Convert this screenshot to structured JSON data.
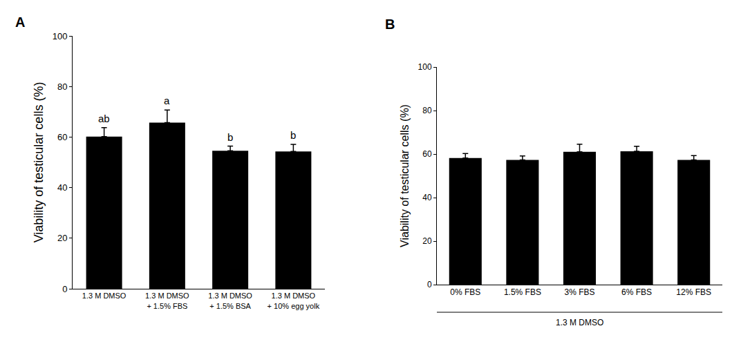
{
  "chart_data": [
    {
      "type": "bar",
      "panel_label": "A",
      "categories": [
        "1.3 M DMSO",
        "1.3 M DMSO + 1.5% FBS",
        "1.3 M DMSO + 1.5% BSA",
        "1.3 M DMSO + 10% egg yolk"
      ],
      "values": [
        60.2,
        65.7,
        54.6,
        54.3
      ],
      "errors": [
        3.5,
        5.0,
        1.8,
        2.8
      ],
      "annotations": [
        "ab",
        "a",
        "b",
        "b"
      ],
      "color": "#000000",
      "ylabel": "Viability of testicular cells (%)",
      "ylim": [
        0,
        100
      ],
      "yticks": [
        0,
        20,
        40,
        60,
        80,
        100
      ],
      "grid": false
    },
    {
      "type": "bar",
      "panel_label": "B",
      "categories": [
        "0% FBS",
        "1.5% FBS",
        "3% FBS",
        "6% FBS",
        "12% FBS"
      ],
      "values": [
        58.2,
        57.3,
        61.0,
        61.3,
        57.3
      ],
      "errors": [
        2.0,
        1.8,
        3.5,
        2.3,
        2.0
      ],
      "color": "#000000",
      "xlabel": "1.3 M DMSO",
      "ylabel": "Viability of testicular cells (%)",
      "ylim": [
        0,
        100
      ],
      "yticks": [
        0,
        20,
        40,
        60,
        80,
        100
      ],
      "grid": false
    }
  ]
}
